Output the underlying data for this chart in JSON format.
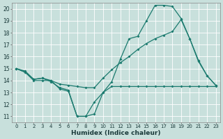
{
  "xlabel": "Humidex (Indice chaleur)",
  "xlim": [
    -0.5,
    23.5
  ],
  "ylim": [
    10.5,
    20.5
  ],
  "yticks": [
    11,
    12,
    13,
    14,
    15,
    16,
    17,
    18,
    19,
    20
  ],
  "xticks": [
    0,
    1,
    2,
    3,
    4,
    5,
    6,
    7,
    8,
    9,
    10,
    11,
    12,
    13,
    14,
    15,
    16,
    17,
    18,
    19,
    20,
    21,
    22,
    23
  ],
  "background_color": "#c8e0dc",
  "grid_color": "#ffffff",
  "line_color": "#1a7a6e",
  "line1_x": [
    0,
    1,
    2,
    3,
    4,
    5,
    6,
    7,
    8,
    9,
    10,
    11,
    12,
    13,
    14,
    15,
    16,
    17,
    18,
    19,
    20,
    21,
    22,
    23
  ],
  "line1_y": [
    15.0,
    14.7,
    14.1,
    14.2,
    13.9,
    13.4,
    13.2,
    11.0,
    11.0,
    11.2,
    13.0,
    13.5,
    13.5,
    13.5,
    13.5,
    13.5,
    13.5,
    13.5,
    13.5,
    13.5,
    13.5,
    13.5,
    13.5,
    13.5
  ],
  "line2_x": [
    0,
    1,
    2,
    3,
    4,
    5,
    6,
    7,
    8,
    9,
    10,
    11,
    12,
    13,
    14,
    15,
    16,
    17,
    18,
    19,
    20,
    21,
    22,
    23
  ],
  "line2_y": [
    15.0,
    14.7,
    14.0,
    14.0,
    14.0,
    13.3,
    13.1,
    11.0,
    11.0,
    12.2,
    13.0,
    13.9,
    15.8,
    17.5,
    17.7,
    19.0,
    20.3,
    20.3,
    20.2,
    19.2,
    17.5,
    15.7,
    14.4,
    13.6
  ],
  "line3_x": [
    0,
    1,
    2,
    3,
    4,
    5,
    6,
    7,
    8,
    9,
    10,
    11,
    12,
    13,
    14,
    15,
    16,
    17,
    18,
    19,
    20,
    21,
    22,
    23
  ],
  "line3_y": [
    15.0,
    14.8,
    14.1,
    14.2,
    14.0,
    13.7,
    13.6,
    13.5,
    13.4,
    13.4,
    14.2,
    14.9,
    15.5,
    16.0,
    16.6,
    17.1,
    17.5,
    17.8,
    18.1,
    19.1,
    17.5,
    15.6,
    14.4,
    13.6
  ],
  "xtick_fontsize": 5.0,
  "ytick_fontsize": 5.5,
  "xlabel_fontsize": 6.5,
  "linewidth": 0.9,
  "markersize": 2.0
}
